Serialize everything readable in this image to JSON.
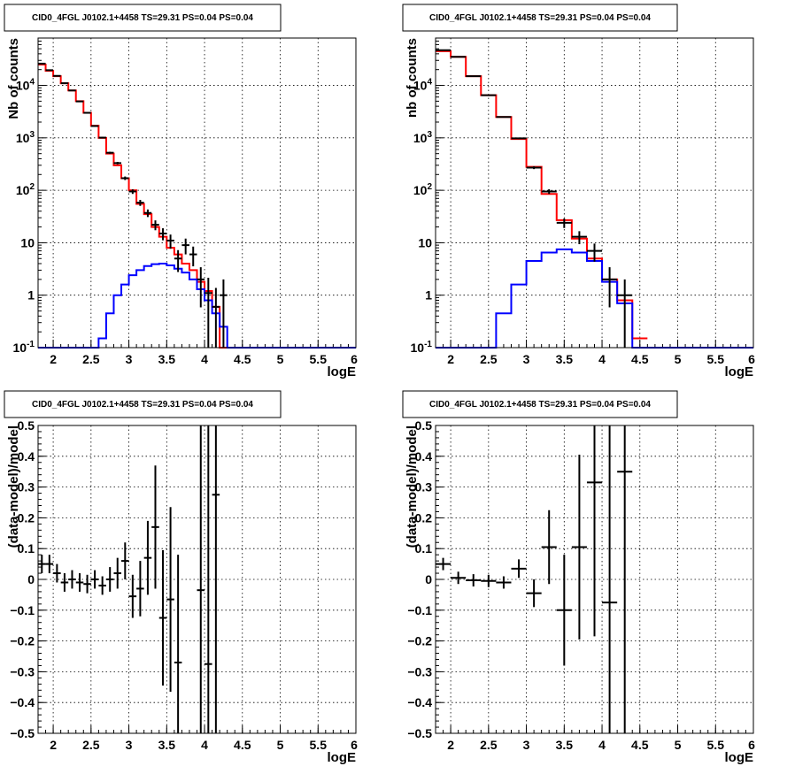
{
  "chart_data": [
    {
      "type": "line",
      "title": "CID0_4FGL J0102.1+4458 TS=29.31 PS=0.04 PS=0.04",
      "xlabel": "logE",
      "ylabel": "Nb of counts",
      "yscale": "log",
      "xlim": [
        1.8,
        6.0
      ],
      "ylim": [
        0.1,
        80000
      ],
      "grid": true,
      "xticks": [
        "2",
        "2.5",
        "3",
        "3.5",
        "4",
        "4.5",
        "5",
        "5.5",
        "6"
      ],
      "yticks": [
        "10^-1",
        "1",
        "10",
        "10^2",
        "10^3",
        "10^4"
      ],
      "bin_width": 0.1,
      "series": [
        {
          "role": "model",
          "color": "#ff0000",
          "x": [
            1.85,
            1.95,
            2.05,
            2.15,
            2.25,
            2.35,
            2.45,
            2.55,
            2.65,
            2.75,
            2.85,
            2.95,
            3.05,
            3.15,
            3.25,
            3.35,
            3.45,
            3.55,
            3.65,
            3.75,
            3.85,
            3.95,
            4.05,
            4.15,
            4.25
          ],
          "values": [
            25000,
            19000,
            15000,
            11000,
            8000,
            5000,
            3000,
            1700,
            1000,
            500,
            300,
            170,
            100,
            55,
            35,
            20,
            13,
            8,
            6,
            4,
            3,
            1.8,
            1.2,
            0.6,
            0.1
          ]
        },
        {
          "role": "component",
          "color": "#0000ff",
          "x": [
            1.85,
            1.95,
            2.05,
            2.15,
            2.25,
            2.35,
            2.45,
            2.55,
            2.65,
            2.75,
            2.85,
            2.95,
            3.05,
            3.15,
            3.25,
            3.35,
            3.45,
            3.55,
            3.65,
            3.75,
            3.85,
            3.95,
            4.05,
            4.15,
            4.25,
            4.35,
            4.45,
            4.55,
            4.65,
            4.75,
            4.85,
            4.95,
            5.05,
            5.15,
            5.25,
            5.35,
            5.45,
            5.55,
            5.65,
            5.75,
            5.85,
            5.95
          ],
          "values": [
            0.1,
            0.1,
            0.1,
            0.1,
            0.1,
            0.1,
            0.1,
            0.1,
            0.15,
            0.45,
            1.0,
            1.6,
            2.4,
            3.0,
            3.6,
            3.9,
            4.0,
            3.7,
            3.2,
            2.7,
            2.0,
            1.3,
            0.8,
            0.45,
            0.25,
            0.1,
            0.1,
            0.1,
            0.1,
            0.1,
            0.1,
            0.1,
            0.1,
            0.1,
            0.1,
            0.1,
            0.1,
            0.1,
            0.1,
            0.1,
            0.1,
            0.1
          ]
        },
        {
          "role": "data",
          "color": "#000000",
          "x": [
            1.85,
            1.95,
            2.05,
            2.15,
            2.25,
            2.35,
            2.45,
            2.55,
            2.65,
            2.75,
            2.85,
            2.95,
            3.05,
            3.15,
            3.25,
            3.35,
            3.45,
            3.55,
            3.65,
            3.75,
            3.85,
            3.95,
            4.05,
            4.15,
            4.25
          ],
          "values": [
            26000,
            19500,
            15200,
            11000,
            8000,
            4950,
            3000,
            1680,
            1010,
            520,
            330,
            170,
            95,
            58,
            37,
            22,
            15,
            11,
            5,
            9,
            6,
            2,
            1.1,
            0.6,
            1
          ]
        }
      ]
    },
    {
      "type": "line",
      "title": "CID0_4FGL J0102.1+4458 TS=29.31 PS=0.04 PS=0.04",
      "xlabel": "logE",
      "ylabel": "nb of counts",
      "yscale": "log",
      "xlim": [
        1.8,
        6.0
      ],
      "ylim": [
        0.1,
        80000
      ],
      "grid": true,
      "xticks": [
        "2",
        "2.5",
        "3",
        "3.5",
        "4",
        "4.5",
        "5",
        "5.5",
        "6"
      ],
      "yticks": [
        "10^-1",
        "1",
        "10",
        "10^2",
        "10^3",
        "10^4"
      ],
      "bin_width": 0.2,
      "series": [
        {
          "role": "model",
          "color": "#ff0000",
          "x": [
            1.9,
            2.1,
            2.3,
            2.5,
            2.7,
            2.9,
            3.1,
            3.3,
            3.5,
            3.7,
            3.9,
            4.1,
            4.3,
            4.5
          ],
          "values": [
            45000,
            35000,
            15000,
            6500,
            2500,
            950,
            280,
            85,
            27,
            12,
            5,
            2,
            0.8,
            0.15
          ]
        },
        {
          "role": "component",
          "color": "#0000ff",
          "x": [
            1.9,
            2.1,
            2.3,
            2.5,
            2.7,
            2.9,
            3.1,
            3.3,
            3.5,
            3.7,
            3.9,
            4.1,
            4.3,
            4.5,
            4.7,
            4.9,
            5.1,
            5.3,
            5.5,
            5.7,
            5.9
          ],
          "values": [
            0.1,
            0.1,
            0.1,
            0.1,
            0.45,
            1.6,
            4.5,
            6.5,
            7.5,
            6.5,
            4.5,
            1.8,
            0.7,
            0.1,
            0.1,
            0.1,
            0.1,
            0.1,
            0.1,
            0.1,
            0.1
          ]
        },
        {
          "role": "data",
          "color": "#000000",
          "x": [
            1.9,
            2.1,
            2.3,
            2.5,
            2.7,
            2.9,
            3.1,
            3.3,
            3.5,
            3.7,
            3.9,
            4.1,
            4.3
          ],
          "values": [
            47000,
            35000,
            15000,
            6500,
            2500,
            980,
            270,
            95,
            24,
            13,
            7,
            2,
            1
          ]
        }
      ]
    },
    {
      "type": "scatter",
      "title": "CID0_4FGL J0102.1+4458 TS=29.31 PS=0.04 PS=0.04",
      "xlabel": "logE",
      "ylabel": "(data-model)/model",
      "xlim": [
        1.8,
        6.0
      ],
      "ylim": [
        -0.5,
        0.5
      ],
      "grid": true,
      "xticks": [
        "2",
        "2.5",
        "3",
        "3.5",
        "4",
        "4.5",
        "5",
        "5.5",
        "6"
      ],
      "yticks": [
        "-0.5",
        "-0.4",
        "-0.3",
        "-0.2",
        "-0.1",
        "0",
        "0.1",
        "0.2",
        "0.3",
        "0.4",
        "0.5"
      ],
      "bin_width": 0.1,
      "points": {
        "x": [
          1.85,
          1.95,
          2.05,
          2.15,
          2.25,
          2.35,
          2.45,
          2.55,
          2.65,
          2.75,
          2.85,
          2.95,
          3.05,
          3.15,
          3.25,
          3.35,
          3.45,
          3.55,
          3.65,
          3.95,
          4.05,
          4.15
        ],
        "y": [
          0.05,
          0.05,
          0.02,
          -0.01,
          0.0,
          -0.01,
          -0.015,
          0.0,
          -0.02,
          0.0,
          0.02,
          0.06,
          -0.055,
          -0.03,
          0.07,
          0.17,
          -0.125,
          -0.065,
          -0.27,
          -0.035,
          -0.275,
          0.275
        ],
        "err": [
          0.03,
          0.03,
          0.03,
          0.03,
          0.03,
          0.03,
          0.03,
          0.03,
          0.03,
          0.04,
          0.05,
          0.06,
          0.07,
          0.09,
          0.12,
          0.2,
          0.22,
          0.3,
          0.35,
          0.9,
          0.9,
          0.9
        ]
      }
    },
    {
      "type": "scatter",
      "title": "CID0_4FGL J0102.1+4458 TS=29.31 PS=0.04 PS=0.04",
      "xlabel": "logE",
      "ylabel": "(data-model)/model",
      "xlim": [
        1.8,
        6.0
      ],
      "ylim": [
        -0.5,
        0.5
      ],
      "grid": true,
      "xticks": [
        "2",
        "2.5",
        "3",
        "3.5",
        "4",
        "4.5",
        "5",
        "5.5",
        "6"
      ],
      "yticks": [
        "-0.5",
        "-0.4",
        "-0.3",
        "-0.2",
        "-0.1",
        "0",
        "0.1",
        "0.2",
        "0.3",
        "0.4",
        "0.5"
      ],
      "bin_width": 0.2,
      "points": {
        "x": [
          1.9,
          2.1,
          2.3,
          2.5,
          2.7,
          2.9,
          3.1,
          3.3,
          3.5,
          3.7,
          3.9,
          4.1,
          4.3
        ],
        "y": [
          0.05,
          0.005,
          -0.003,
          -0.005,
          -0.01,
          0.035,
          -0.045,
          0.105,
          -0.1,
          0.105,
          0.315,
          -0.075,
          0.35
        ],
        "err": [
          0.02,
          0.02,
          0.02,
          0.02,
          0.02,
          0.03,
          0.045,
          0.12,
          0.18,
          0.3,
          0.5,
          0.9,
          0.9
        ]
      }
    }
  ]
}
